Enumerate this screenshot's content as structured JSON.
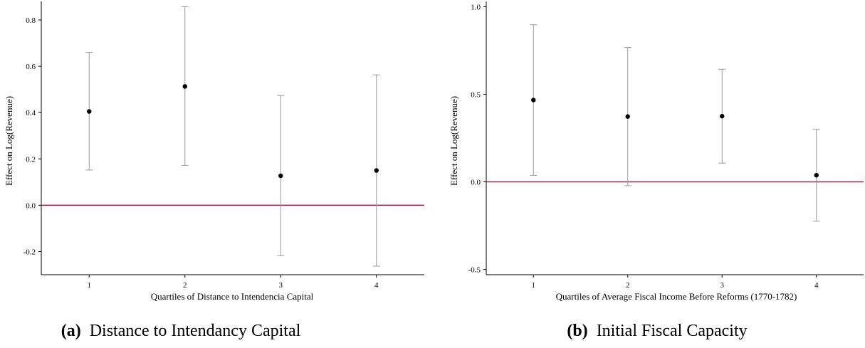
{
  "chart_data": [
    {
      "type": "scatter",
      "panel": "(a)",
      "caption_label": "(a)",
      "caption_text": "Distance to Intendancy Capital",
      "xlabel": "Quartiles of Distance to Intendencia Capital",
      "ylabel": "Effect on Log(Revenue)",
      "x": [
        1,
        2,
        3,
        4
      ],
      "y": [
        0.405,
        0.513,
        0.127,
        0.15
      ],
      "ci_low": [
        0.152,
        0.172,
        -0.218,
        -0.263
      ],
      "ci_high": [
        0.66,
        0.857,
        0.474,
        0.563
      ],
      "xlim": [
        0.5,
        4.5
      ],
      "ylim": [
        -0.3,
        0.88
      ],
      "yticks": [
        -0.2,
        0.0,
        0.2,
        0.4,
        0.6,
        0.8
      ],
      "ytick_labels": [
        "-0.2",
        "0.0",
        "0.2",
        "0.4",
        "0.6",
        "0.8"
      ],
      "xtick_labels": [
        "1",
        "2",
        "3",
        "4"
      ],
      "reference_line": 0,
      "reference_color": "#a0153e",
      "ci_color": "#999999",
      "point_color": "#000000"
    },
    {
      "type": "scatter",
      "panel": "(b)",
      "caption_label": "(b)",
      "caption_text": "Initial Fiscal Capacity",
      "xlabel": "Quartiles of Average Fiscal Income Before Reforms (1770-1782)",
      "ylabel": "Effect on Log(Revenue)",
      "x": [
        1,
        2,
        3,
        4
      ],
      "y": [
        0.467,
        0.373,
        0.375,
        0.038
      ],
      "ci_low": [
        0.037,
        -0.022,
        0.107,
        -0.225
      ],
      "ci_high": [
        0.897,
        0.768,
        0.643,
        0.3
      ],
      "xlim": [
        0.5,
        4.5
      ],
      "ylim": [
        -0.53,
        1.03
      ],
      "yticks": [
        -0.5,
        0.0,
        0.5,
        1.0
      ],
      "ytick_labels": [
        "-0.5",
        "0.0",
        "0.5",
        "1.0"
      ],
      "xtick_labels": [
        "1",
        "2",
        "3",
        "4"
      ],
      "reference_line": 0,
      "reference_color": "#a0153e",
      "ci_color": "#999999",
      "point_color": "#000000"
    }
  ]
}
